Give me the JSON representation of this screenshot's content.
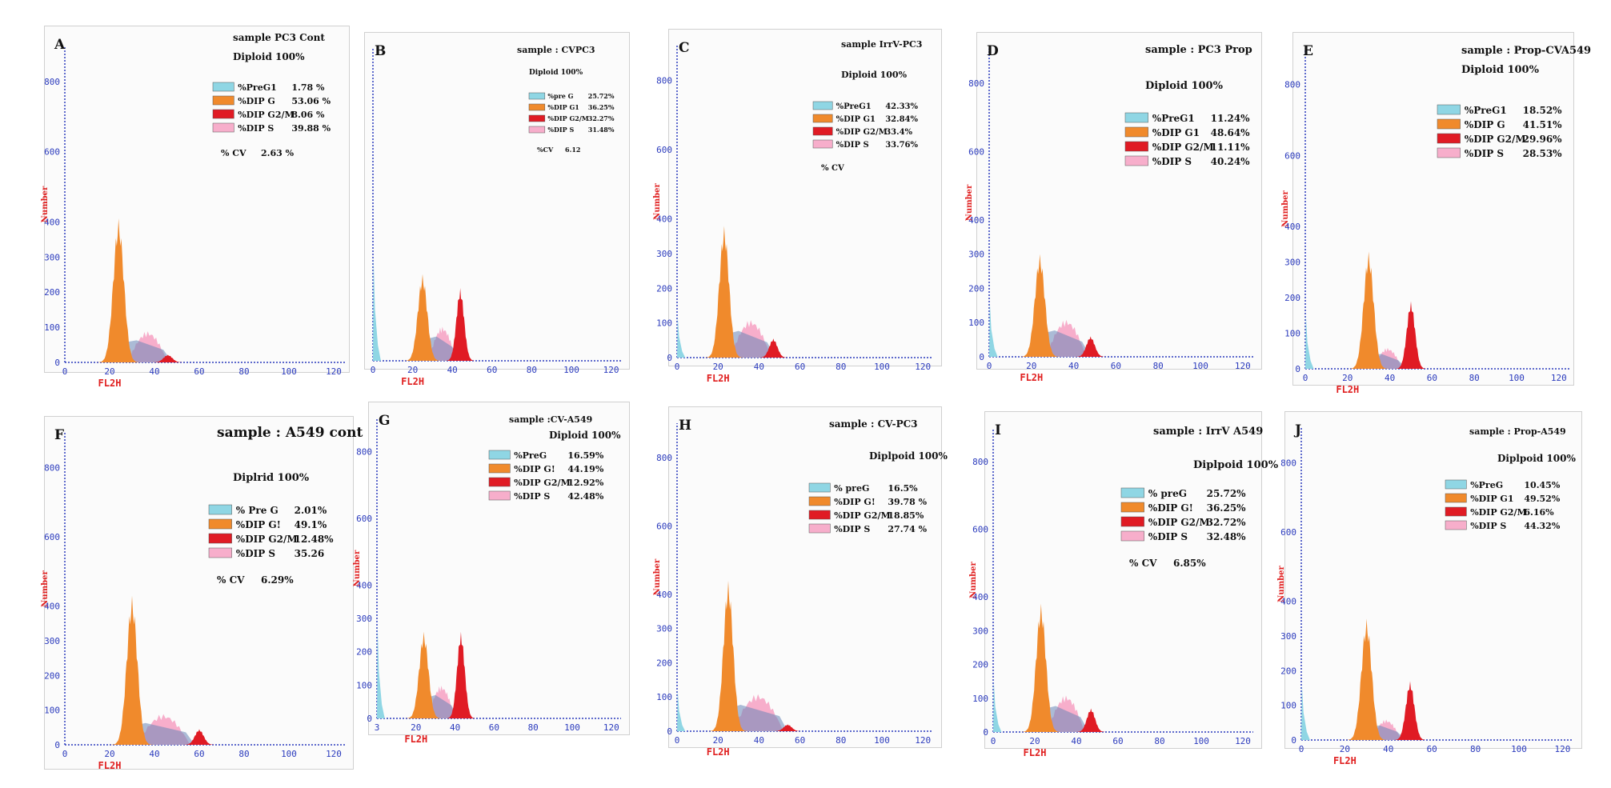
{
  "colors": {
    "preg": "#8fd6e4",
    "g1": "#f08a2c",
    "g2m": "#e01b24",
    "s": "#f7aecb",
    "g1dark": "#d66a12",
    "blue": "#6a86b8",
    "axis": "#2b3bbd",
    "label": "#e02020"
  },
  "chart_data": [
    {
      "type": "area",
      "letter": "A",
      "title": "sample PC3 Cont",
      "diploid": "Diploid 100%",
      "xlabel": "FL2H",
      "ylabel": "Number",
      "xticks": [
        "0",
        "20",
        "40",
        "60",
        "80",
        "100",
        "120"
      ],
      "yticks": [
        "0",
        "100",
        "200",
        "300",
        "400",
        "600",
        "800"
      ],
      "legend": [
        {
          "cls": "preg",
          "label": "%PreG1",
          "value": "1.78 %"
        },
        {
          "cls": "g1",
          "label": "%DIP G",
          "value": "53.06 %"
        },
        {
          "cls": "g2m",
          "label": "%DIP G2/M",
          "value": "8.06 %"
        },
        {
          "cls": "s",
          "label": "%DIP S",
          "value": "39.88 %"
        }
      ],
      "cv_label": "% CV",
      "cv_value": "2.63 %",
      "peaks": {
        "preg_h": 0,
        "g1_pos": 24,
        "g1_h": 410,
        "s_h": 90,
        "s_from": 28,
        "s_to": 46,
        "g2m_pos": 46,
        "g2m_h": 22
      }
    },
    {
      "type": "area",
      "letter": "B",
      "title": "sample : CVPC3",
      "diploid": "Diploid 100%",
      "xlabel": "FL2H",
      "ylabel": "",
      "xticks": [
        "0",
        "20",
        "40",
        "60",
        "80",
        "100",
        "120"
      ],
      "yticks": [],
      "legend": [
        {
          "cls": "preg",
          "label": "%pre G",
          "value": "25.72%"
        },
        {
          "cls": "g1",
          "label": "%DIP G1",
          "value": "36.25%"
        },
        {
          "cls": "g2m",
          "label": "%DIP G2/M",
          "value": "32.27%"
        },
        {
          "cls": "s",
          "label": "%DIP S",
          "value": "31.48%"
        }
      ],
      "cv_label": "%CV",
      "cv_value": "6.12",
      "peaks": {
        "preg_h": 300,
        "g1_pos": 25,
        "g1_h": 250,
        "s_h": 100,
        "s_from": 28,
        "s_to": 42,
        "g2m_pos": 44,
        "g2m_h": 210
      }
    },
    {
      "type": "area",
      "letter": "C",
      "title": "sample IrrV-PC3",
      "diploid": "Diploid      100%",
      "xlabel": "FL2H",
      "ylabel": "Number",
      "xticks": [
        "0",
        "20",
        "40",
        "60",
        "80",
        "100",
        "120"
      ],
      "yticks": [
        "0",
        "100",
        "200",
        "300",
        "400",
        "600",
        "800"
      ],
      "legend": [
        {
          "cls": "preg",
          "label": "%PreG1",
          "value": "42.33%"
        },
        {
          "cls": "g1",
          "label": "%DIP G1",
          "value": "32.84%"
        },
        {
          "cls": "g2m",
          "label": "%DIP G2/M",
          "value": "33.4%"
        },
        {
          "cls": "s",
          "label": "%DIP S",
          "value": "33.76%"
        }
      ],
      "cv_label": "% CV",
      "cv_value": "",
      "peaks": {
        "preg_h": 120,
        "g1_pos": 23,
        "g1_h": 380,
        "s_h": 110,
        "s_from": 26,
        "s_to": 46,
        "g2m_pos": 47,
        "g2m_h": 55
      }
    },
    {
      "type": "area",
      "letter": "D",
      "title": "sample : PC3 Prop",
      "diploid": "Diploid      100%",
      "xlabel": "FL2H",
      "ylabel": "Number",
      "xticks": [
        "0",
        "20",
        "40",
        "60",
        "80",
        "100",
        "120"
      ],
      "yticks": [
        "0",
        "100",
        "200",
        "300",
        "400",
        "600",
        "800"
      ],
      "legend": [
        {
          "cls": "preg",
          "label": "%PreG1",
          "value": "11.24%"
        },
        {
          "cls": "g1",
          "label": "%DIP G1",
          "value": "48.64%"
        },
        {
          "cls": "g2m",
          "label": "%DIP G2/M",
          "value": "11.11%"
        },
        {
          "cls": "s",
          "label": "%DIP S",
          "value": "40.24%"
        }
      ],
      "cv_label": "",
      "cv_value": "",
      "peaks": {
        "preg_h": 160,
        "g1_pos": 24,
        "g1_h": 300,
        "s_h": 110,
        "s_from": 27,
        "s_to": 46,
        "g2m_pos": 48,
        "g2m_h": 60
      }
    },
    {
      "type": "area",
      "letter": "E",
      "title": "sample : Prop-CVA549",
      "diploid": "Diploid      100%",
      "xlabel": "FL2H",
      "ylabel": "Number",
      "xticks": [
        "0",
        "20",
        "40",
        "60",
        "80",
        "100",
        "120"
      ],
      "yticks": [
        "0",
        "100",
        "200",
        "300",
        "400",
        "600",
        "800"
      ],
      "legend": [
        {
          "cls": "preg",
          "label": "%PreG1",
          "value": "18.52%"
        },
        {
          "cls": "g1",
          "label": "%DIP G",
          "value": "41.51%"
        },
        {
          "cls": "g2m",
          "label": "%DIP G2/M",
          "value": "29.96%"
        },
        {
          "cls": "s",
          "label": "%DIP S",
          "value": "28.53%"
        }
      ],
      "cv_label": "",
      "cv_value": "",
      "peaks": {
        "preg_h": 150,
        "g1_pos": 30,
        "g1_h": 330,
        "s_h": 60,
        "s_from": 32,
        "s_to": 46,
        "g2m_pos": 50,
        "g2m_h": 190
      }
    },
    {
      "type": "area",
      "letter": "F",
      "title": "sample : A549 cont",
      "diploid": "Diplrid 100%",
      "xlabel": "FL2H",
      "ylabel": "Number",
      "xticks": [
        "0",
        "20",
        "40",
        "60",
        "80",
        "100",
        "120"
      ],
      "yticks": [
        "0",
        "100",
        "200",
        "300",
        "400",
        "600",
        "800"
      ],
      "legend": [
        {
          "cls": "preg",
          "label": "% Pre G",
          "value": "2.01%"
        },
        {
          "cls": "g1",
          "label": "%DIP G!",
          "value": "49.1%"
        },
        {
          "cls": "g2m",
          "label": "%DIP G2/M",
          "value": "12.48%"
        },
        {
          "cls": "s",
          "label": "%DIP S",
          "value": "35.26"
        }
      ],
      "cv_label": "% CV",
      "cv_value": "6.29%",
      "peaks": {
        "preg_h": 0,
        "g1_pos": 30,
        "g1_h": 430,
        "s_h": 90,
        "s_from": 32,
        "s_to": 56,
        "g2m_pos": 60,
        "g2m_h": 45
      }
    },
    {
      "type": "area",
      "letter": "G",
      "title": "sample :CV-A549",
      "diploid": "Diploid      100%",
      "xlabel": "FL2H",
      "ylabel": "Number",
      "xticks": [
        "3",
        "20",
        "40",
        "60",
        "80",
        "100",
        "120"
      ],
      "yticks": [
        "0",
        "100",
        "200",
        "300",
        "400",
        "600",
        "800"
      ],
      "legend": [
        {
          "cls": "preg",
          "label": "%PreG",
          "value": "16.59%"
        },
        {
          "cls": "g1",
          "label": "%DIP G!",
          "value": "44.19%"
        },
        {
          "cls": "g2m",
          "label": "%DIP G2/M",
          "value": "12.92%"
        },
        {
          "cls": "s",
          "label": "%DIP S",
          "value": "42.48%"
        }
      ],
      "cv_label": "",
      "cv_value": "",
      "peaks": {
        "preg_h": 280,
        "g1_pos": 24,
        "g1_h": 260,
        "s_h": 100,
        "s_from": 26,
        "s_to": 40,
        "g2m_pos": 43,
        "g2m_h": 260
      }
    },
    {
      "type": "area",
      "letter": "H",
      "title": "sample : CV-PC3",
      "diploid": "Diplpoid      100%",
      "xlabel": "FL2H",
      "ylabel": "Number",
      "xticks": [
        "0",
        "20",
        "40",
        "60",
        "80",
        "100",
        "120"
      ],
      "yticks": [
        "0",
        "100",
        "200",
        "300",
        "400",
        "600",
        "800"
      ],
      "legend": [
        {
          "cls": "preg",
          "label": "% preG",
          "value": "16.5%"
        },
        {
          "cls": "g1",
          "label": "%DIP G!",
          "value": "39.78 %"
        },
        {
          "cls": "g2m",
          "label": "%DIP G2/M",
          "value": "18.85%"
        },
        {
          "cls": "s",
          "label": "%DIP S",
          "value": "27.74 %"
        }
      ],
      "cv_label": "",
      "cv_value": "",
      "peaks": {
        "preg_h": 120,
        "g1_pos": 25,
        "g1_h": 440,
        "s_h": 110,
        "s_from": 27,
        "s_to": 52,
        "g2m_pos": 54,
        "g2m_h": 20
      }
    },
    {
      "type": "area",
      "letter": "I",
      "title": "sample : IrrV A549",
      "diploid": "Diplpoid      100%",
      "xlabel": "FL2H",
      "ylabel": "Number",
      "xticks": [
        "0",
        "20",
        "40",
        "60",
        "80",
        "100",
        "120"
      ],
      "yticks": [
        "0",
        "100",
        "200",
        "300",
        "400",
        "600",
        "800"
      ],
      "legend": [
        {
          "cls": "preg",
          "label": "% preG",
          "value": "25.72%"
        },
        {
          "cls": "g1",
          "label": "%DIP G!",
          "value": "36.25%"
        },
        {
          "cls": "g2m",
          "label": "%DIP G2/M",
          "value": "32.72%"
        },
        {
          "cls": "s",
          "label": "%DIP S",
          "value": "32.48%"
        }
      ],
      "cv_label": "% CV",
      "cv_value": "6.85%",
      "peaks": {
        "preg_h": 150,
        "g1_pos": 23,
        "g1_h": 380,
        "s_h": 110,
        "s_from": 26,
        "s_to": 44,
        "g2m_pos": 47,
        "g2m_h": 70
      }
    },
    {
      "type": "area",
      "letter": "J",
      "title": "sample : Prop-A549",
      "diploid": "Diplpoid      100%",
      "xlabel": "FL2H",
      "ylabel": "Number",
      "xticks": [
        "0",
        "20",
        "40",
        "60",
        "80",
        "100",
        "120"
      ],
      "yticks": [
        "0",
        "100",
        "200",
        "300",
        "400",
        "600",
        "800"
      ],
      "legend": [
        {
          "cls": "preg",
          "label": "%PreG",
          "value": "10.45%"
        },
        {
          "cls": "g1",
          "label": "%DIP G1",
          "value": "49.52%"
        },
        {
          "cls": "g2m",
          "label": "%DIP G2/M",
          "value": "6.16%"
        },
        {
          "cls": "s",
          "label": "%DIP S",
          "value": "44.32%"
        }
      ],
      "cv_label": "",
      "cv_value": "",
      "peaks": {
        "preg_h": 160,
        "g1_pos": 30,
        "g1_h": 350,
        "s_h": 60,
        "s_from": 32,
        "s_to": 46,
        "g2m_pos": 50,
        "g2m_h": 170
      }
    }
  ]
}
